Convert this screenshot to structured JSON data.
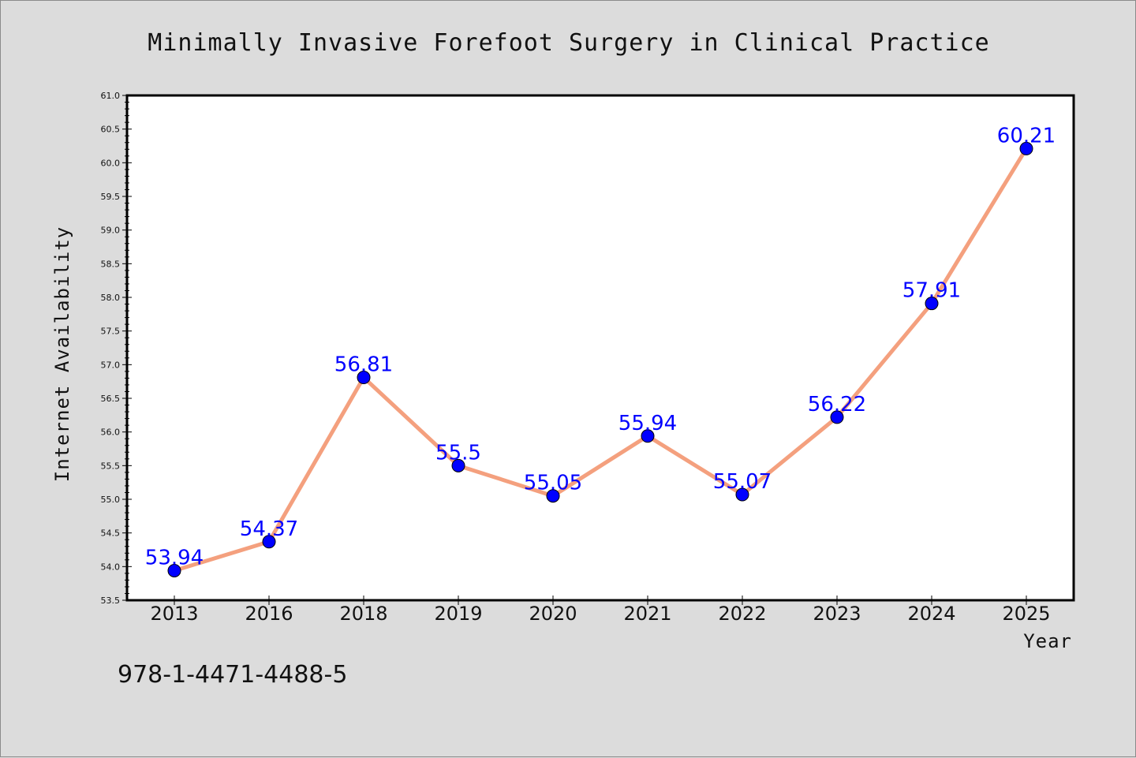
{
  "chart_data": {
    "type": "line",
    "title": "Minimally Invasive Forefoot Surgery in Clinical Practice",
    "xlabel": "Year",
    "ylabel": "Internet Availability",
    "categories": [
      "2013",
      "2016",
      "2018",
      "2019",
      "2020",
      "2021",
      "2022",
      "2023",
      "2024",
      "2025"
    ],
    "series": [
      {
        "values": [
          53.94,
          54.37,
          56.81,
          55.5,
          55.05,
          55.94,
          55.07,
          56.22,
          57.91,
          60.21
        ],
        "data_labels": [
          "53.94",
          "54.37",
          "56.81",
          "55.5",
          "55.05",
          "55.94",
          "55.07",
          "56.22",
          "57.91",
          "60.21"
        ]
      }
    ],
    "ylim": [
      53.5,
      61.0
    ],
    "yticks": [
      "53.5",
      "54.0",
      "54.5",
      "55.0",
      "55.5",
      "56.0",
      "56.5",
      "57.0",
      "57.5",
      "58.0",
      "58.5",
      "59.0",
      "59.5",
      "60.0",
      "60.5",
      "61.0"
    ],
    "grid": false,
    "legend": "none",
    "colors": {
      "line": "#f4a07e",
      "marker": "#0000ff",
      "label": "#0000ff",
      "background": "#dcdcdc",
      "plot_area": "#ffffff"
    }
  },
  "footer_text": "978-1-4471-4488-5"
}
